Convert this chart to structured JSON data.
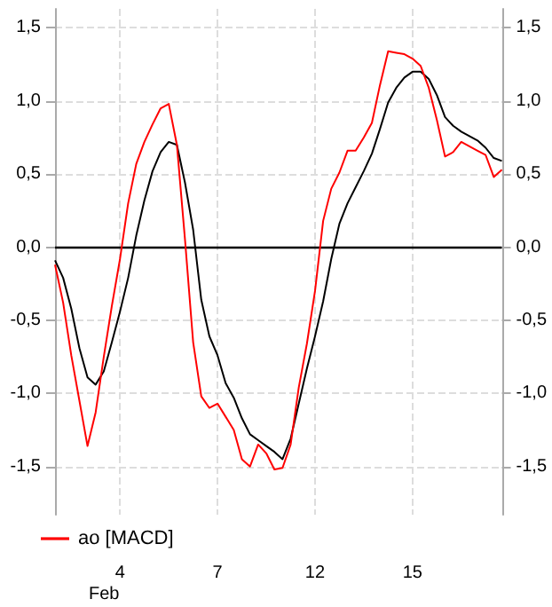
{
  "chart_data": {
    "type": "line",
    "xlabel": "Feb",
    "categories": [
      null,
      null,
      null,
      null,
      null,
      null,
      null,
      null,
      "4",
      null,
      null,
      null,
      null,
      null,
      null,
      null,
      null,
      null,
      null,
      null,
      "7",
      null,
      null,
      null,
      null,
      null,
      null,
      null,
      null,
      null,
      null,
      null,
      "12",
      null,
      null,
      null,
      null,
      null,
      null,
      null,
      null,
      null,
      null,
      null,
      "15",
      null,
      null,
      null,
      null,
      null,
      null,
      null,
      null,
      null,
      null,
      null
    ],
    "ylim": [
      -1.83,
      1.63
    ],
    "yticks": [
      {
        "value": -1.5,
        "label": "-1,5"
      },
      {
        "value": -1,
        "label": "-1,0"
      },
      {
        "value": -0.5,
        "label": "-0,5"
      },
      {
        "value": 0,
        "label": "0,0"
      },
      {
        "value": 0.5,
        "label": "0,5"
      },
      {
        "value": 1,
        "label": "1,0"
      },
      {
        "value": 1.5,
        "label": "1,5"
      }
    ],
    "y2lim": [
      -1.83,
      1.63
    ],
    "y2ticks": [
      {
        "value": -1.5,
        "label": "-1,5"
      },
      {
        "value": -1,
        "label": "-1,0"
      },
      {
        "value": -0.5,
        "label": "-0,5"
      },
      {
        "value": 0,
        "label": "0,0"
      },
      {
        "value": 0.5,
        "label": "0,5"
      },
      {
        "value": 1,
        "label": "1,0"
      },
      {
        "value": 1.5,
        "label": "1,5"
      }
    ],
    "grid": true,
    "legend": "bottom left",
    "marker": "none",
    "line_style": "solid",
    "ref_lines": [
      {
        "axis": "y",
        "value": 0,
        "color": "#000000"
      }
    ],
    "series": [
      {
        "name": "ао [MACD]",
        "color": "#ff0000",
        "values": [
          -0.12,
          -0.38,
          -0.74,
          -1.05,
          -1.36,
          -1.13,
          -0.75,
          -0.4,
          -0.08,
          0.3,
          0.57,
          0.72,
          0.84,
          0.95,
          0.98,
          0.7,
          0.05,
          -0.65,
          -1.02,
          -1.1,
          -1.07,
          -1.16,
          -1.25,
          -1.45,
          -1.5,
          -1.35,
          -1.41,
          -1.52,
          -1.51,
          -1.35,
          -0.96,
          -0.66,
          -0.3,
          0.18,
          0.4,
          0.51,
          0.66,
          0.66,
          0.75,
          0.85,
          1.11,
          1.34,
          1.33,
          1.32,
          1.29,
          1.24,
          1.09,
          0.87,
          0.62,
          0.65,
          0.72,
          0.69,
          0.66,
          0.63,
          0.48,
          0.53
        ]
      },
      {
        "color": "#000000",
        "values": [
          -0.09,
          -0.21,
          -0.42,
          -0.69,
          -0.89,
          -0.94,
          -0.85,
          -0.65,
          -0.44,
          -0.21,
          0.08,
          0.32,
          0.52,
          0.65,
          0.72,
          0.7,
          0.44,
          0.12,
          -0.36,
          -0.61,
          -0.74,
          -0.93,
          -1.03,
          -1.17,
          -1.28,
          -1.32,
          -1.36,
          -1.4,
          -1.45,
          -1.31,
          -1.07,
          -0.83,
          -0.61,
          -0.37,
          -0.08,
          0.16,
          0.3,
          0.41,
          0.52,
          0.64,
          0.81,
          0.99,
          1.09,
          1.16,
          1.2,
          1.2,
          1.15,
          1.04,
          0.89,
          0.83,
          0.79,
          0.76,
          0.73,
          0.68,
          0.61,
          0.59
        ]
      }
    ]
  }
}
